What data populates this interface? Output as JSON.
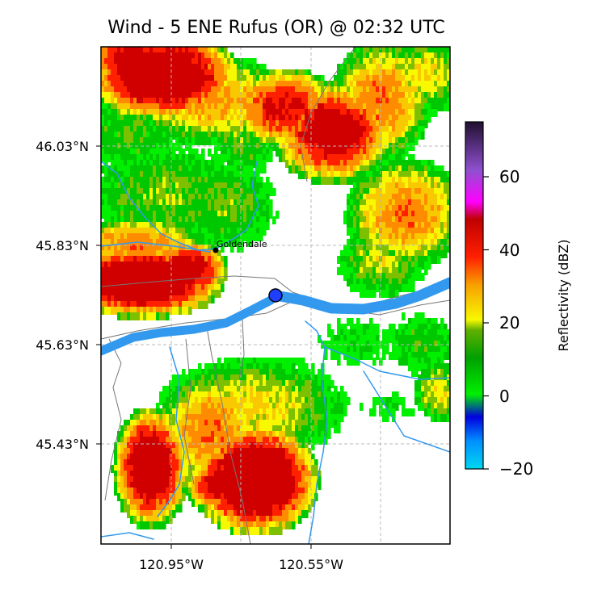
{
  "title": "Wind - 5 ENE Rufus (OR) @ 02:32 UTC",
  "map": {
    "lat_ticks": [
      "46.03°N",
      "45.83°N",
      "45.63°N",
      "45.43°N"
    ],
    "lon_ticks": [
      "120.95°W",
      "120.55°W"
    ],
    "lat_values": [
      46.03,
      45.83,
      45.63,
      45.43
    ],
    "lon_values": [
      -120.95,
      -120.55
    ],
    "extent": {
      "lon_min": -121.15,
      "lon_max": -120.15,
      "lat_min": 45.22,
      "lat_max": 46.23
    },
    "gridlines": true,
    "city": {
      "name": "Goldendale",
      "lat": 45.82,
      "lon": -120.82
    },
    "site": {
      "lat": 45.72,
      "lon": -120.65,
      "color": "#1f3fff"
    },
    "river_color": "#3399ee",
    "border_color": "#777777"
  },
  "colorbar": {
    "label": "Reflectivity (dBZ)",
    "min": -20,
    "max": 75,
    "ticks": [
      "−20",
      "0",
      "20",
      "40",
      "60"
    ],
    "tick_values": [
      -20,
      0,
      20,
      40,
      60
    ]
  }
}
